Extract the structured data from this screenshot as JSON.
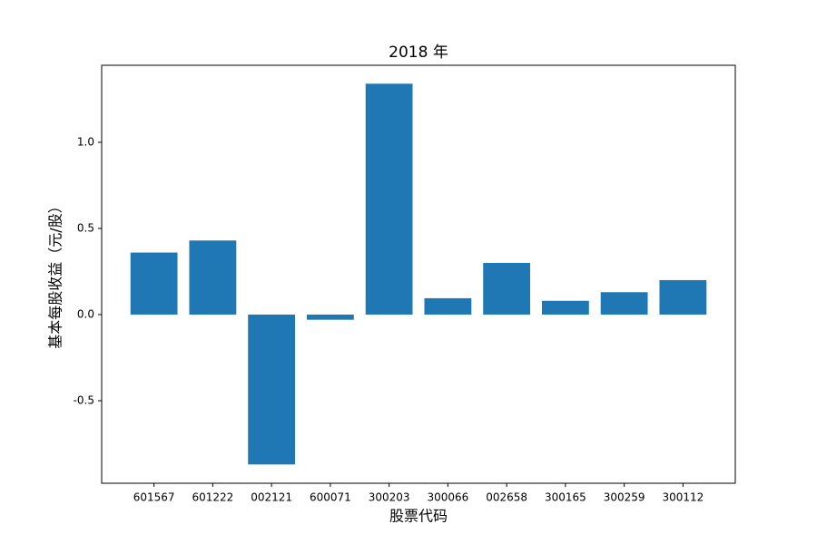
{
  "chart_data": {
    "type": "bar",
    "title": "2018 年",
    "x_label": "股票代码",
    "y_label": "基本每股收益（元/股）",
    "categories": [
      "601567",
      "601222",
      "002121",
      "600071",
      "300203",
      "300066",
      "002658",
      "300165",
      "300259",
      "300112"
    ],
    "values": [
      0.36,
      0.43,
      -0.87,
      -0.03,
      1.34,
      0.095,
      0.3,
      0.08,
      0.13,
      0.2
    ],
    "color": "#1f77b4",
    "ylim": [
      -0.979,
      1.447
    ],
    "yticks": [
      -0.5,
      {
        "value": 0,
        "label": "0.0"
      },
      0.5,
      {
        "value": 1,
        "label": "1.0"
      }
    ],
    "grid": false
  }
}
